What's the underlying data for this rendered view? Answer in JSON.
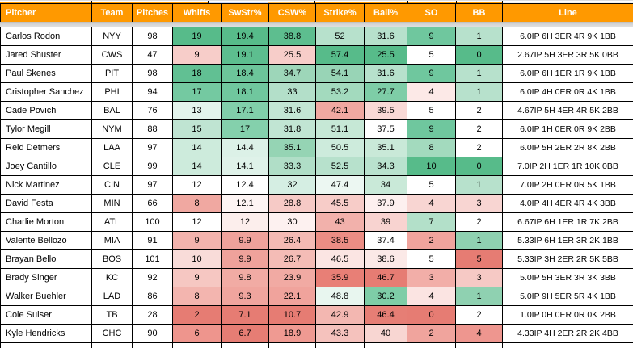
{
  "colors": {
    "header_bg": "#ff9900",
    "header_text": "#ffffff",
    "grid_border": "#000000",
    "heat_green_max": "#57bb8a",
    "heat_red_max": "#e67c73",
    "frozen_band_gray": "#d2d2d2",
    "top_strip_blue": "#c9daf8"
  },
  "table": {
    "columns": [
      {
        "key": "pitcher",
        "label": "Pitcher"
      },
      {
        "key": "team",
        "label": "Team"
      },
      {
        "key": "pitches",
        "label": "Pitches"
      },
      {
        "key": "whiffs",
        "label": "Whiffs"
      },
      {
        "key": "swstr",
        "label": "SwStr%"
      },
      {
        "key": "csw",
        "label": "CSW%"
      },
      {
        "key": "strike",
        "label": "Strike%"
      },
      {
        "key": "ball",
        "label": "Ball%"
      },
      {
        "key": "so",
        "label": "SO"
      },
      {
        "key": "bb",
        "label": "BB"
      },
      {
        "key": "line",
        "label": "Line"
      }
    ],
    "rows": [
      {
        "cells": [
          {
            "v": "Carlos Rodon"
          },
          {
            "v": "NYY"
          },
          {
            "v": "98"
          },
          {
            "v": "19",
            "bg": "#57bb8a"
          },
          {
            "v": "19.4",
            "bg": "#57bb8a"
          },
          {
            "v": "38.8",
            "bg": "#5dbe8f"
          },
          {
            "v": "52",
            "bg": "#b7e1cc"
          },
          {
            "v": "31.6",
            "bg": "#b7e1cc"
          },
          {
            "v": "9",
            "bg": "#6fc79e"
          },
          {
            "v": "1",
            "bg": "#b7e1cc"
          },
          {
            "v": "6.0IP 6H 3ER 4R 9K 1BB"
          }
        ]
      },
      {
        "cells": [
          {
            "v": "Jared Shuster"
          },
          {
            "v": "CWS"
          },
          {
            "v": "47"
          },
          {
            "v": "9",
            "bg": "#f7cdc9"
          },
          {
            "v": "19.1",
            "bg": "#5dbe8f"
          },
          {
            "v": "25.5",
            "bg": "#f7cdc9"
          },
          {
            "v": "57.4",
            "bg": "#57bb8a"
          },
          {
            "v": "25.5",
            "bg": "#57bb8a"
          },
          {
            "v": "5"
          },
          {
            "v": "0",
            "bg": "#57bb8a"
          },
          {
            "v": "2.67IP 5H 3ER 3R 5K 0BB"
          }
        ]
      },
      {
        "cells": [
          {
            "v": "Paul Skenes"
          },
          {
            "v": "PIT"
          },
          {
            "v": "98"
          },
          {
            "v": "18",
            "bg": "#61c093"
          },
          {
            "v": "18.4",
            "bg": "#6cc59a"
          },
          {
            "v": "34.7",
            "bg": "#9dd6b9"
          },
          {
            "v": "54.1",
            "bg": "#98d4b6"
          },
          {
            "v": "31.6",
            "bg": "#b7e1cc"
          },
          {
            "v": "9",
            "bg": "#6fc79e"
          },
          {
            "v": "1",
            "bg": "#b7e1cc"
          },
          {
            "v": "6.0IP 6H 1ER 1R 9K 1BB"
          }
        ]
      },
      {
        "cells": [
          {
            "v": "Cristopher Sanchez"
          },
          {
            "v": "PHI"
          },
          {
            "v": "94"
          },
          {
            "v": "17",
            "bg": "#74c9a1"
          },
          {
            "v": "18.1",
            "bg": "#70c79e"
          },
          {
            "v": "33",
            "bg": "#b3dfc9"
          },
          {
            "v": "53.2",
            "bg": "#a3dabe"
          },
          {
            "v": "27.7",
            "bg": "#7ecda7"
          },
          {
            "v": "4",
            "bg": "#fce9e7"
          },
          {
            "v": "1",
            "bg": "#b7e1cc"
          },
          {
            "v": "6.0IP 4H 0ER 0R 4K 1BB"
          }
        ]
      },
      {
        "cells": [
          {
            "v": "Cade Povich"
          },
          {
            "v": "BAL"
          },
          {
            "v": "76"
          },
          {
            "v": "13",
            "bg": "#e3f4ec"
          },
          {
            "v": "17.1",
            "bg": "#81cfaa"
          },
          {
            "v": "31.6",
            "bg": "#c3e6d4"
          },
          {
            "v": "42.1",
            "bg": "#f0a8a1"
          },
          {
            "v": "39.5",
            "bg": "#f9d9d6"
          },
          {
            "v": "5"
          },
          {
            "v": "2"
          },
          {
            "v": "4.67IP 5H 4ER 4R 5K 2BB"
          }
        ]
      },
      {
        "cells": [
          {
            "v": "Tylor Megill"
          },
          {
            "v": "NYM"
          },
          {
            "v": "88"
          },
          {
            "v": "15",
            "bg": "#bfe4d2"
          },
          {
            "v": "17",
            "bg": "#84d0ac"
          },
          {
            "v": "31.8",
            "bg": "#c1e5d3"
          },
          {
            "v": "51.1",
            "bg": "#c6e8d6"
          },
          {
            "v": "37.5"
          },
          {
            "v": "9",
            "bg": "#6fc79e"
          },
          {
            "v": "2"
          },
          {
            "v": "6.0IP 1H 0ER 0R 9K 2BB"
          }
        ]
      },
      {
        "cells": [
          {
            "v": "Reid Detmers"
          },
          {
            "v": "LAA"
          },
          {
            "v": "97"
          },
          {
            "v": "14",
            "bg": "#cdebdc"
          },
          {
            "v": "14.4",
            "bg": "#dcf1e7"
          },
          {
            "v": "35.1",
            "bg": "#95d4b4"
          },
          {
            "v": "50.5",
            "bg": "#cdebdc"
          },
          {
            "v": "35.1",
            "bg": "#c9e9d8"
          },
          {
            "v": "8",
            "bg": "#a3dabe"
          },
          {
            "v": "2"
          },
          {
            "v": "6.0IP 5H 2ER 2R 8K 2BB"
          }
        ]
      },
      {
        "cells": [
          {
            "v": "Joey Cantillo"
          },
          {
            "v": "CLE"
          },
          {
            "v": "99"
          },
          {
            "v": "14",
            "bg": "#cdebdc"
          },
          {
            "v": "14.1",
            "bg": "#dff2e9"
          },
          {
            "v": "33.3",
            "bg": "#b0dec7"
          },
          {
            "v": "52.5",
            "bg": "#b7e1cc"
          },
          {
            "v": "34.3",
            "bg": "#b9e2ce"
          },
          {
            "v": "10",
            "bg": "#57bb8a"
          },
          {
            "v": "0",
            "bg": "#57bb8a"
          },
          {
            "v": "7.0IP 2H 1ER 1R 10K 0BB"
          }
        ]
      },
      {
        "cells": [
          {
            "v": "Nick Martinez"
          },
          {
            "v": "CIN"
          },
          {
            "v": "97"
          },
          {
            "v": "12"
          },
          {
            "v": "12.4"
          },
          {
            "v": "32",
            "bg": "#d5eee3"
          },
          {
            "v": "47.4",
            "bg": "#ecf7f2"
          },
          {
            "v": "34",
            "bg": "#c9e9d8"
          },
          {
            "v": "5"
          },
          {
            "v": "1",
            "bg": "#b7e1cc"
          },
          {
            "v": "7.0IP 2H 0ER 0R 5K 1BB"
          }
        ]
      },
      {
        "cells": [
          {
            "v": "David Festa"
          },
          {
            "v": "MIN"
          },
          {
            "v": "66"
          },
          {
            "v": "8",
            "bg": "#f0a8a1"
          },
          {
            "v": "12.1",
            "bg": "#fdf4f3"
          },
          {
            "v": "28.8",
            "bg": "#f6cac6"
          },
          {
            "v": "45.5",
            "bg": "#f7ccc8"
          },
          {
            "v": "37.9",
            "bg": "#fdf0ef"
          },
          {
            "v": "4",
            "bg": "#f8d5d2"
          },
          {
            "v": "3",
            "bg": "#f8d5d2"
          },
          {
            "v": "4.0IP 4H 4ER 4R 4K 3BB"
          }
        ]
      },
      {
        "cells": [
          {
            "v": "Charlie Morton"
          },
          {
            "v": "ATL"
          },
          {
            "v": "100"
          },
          {
            "v": "12"
          },
          {
            "v": "12",
            "bg": "#fceeec"
          },
          {
            "v": "30",
            "bg": "#fdf1f0"
          },
          {
            "v": "43",
            "bg": "#f2b1ab"
          },
          {
            "v": "39",
            "bg": "#f8d3d0"
          },
          {
            "v": "7",
            "bg": "#b3e0c9"
          },
          {
            "v": "2"
          },
          {
            "v": "6.67IP 6H 1ER 1R 7K 2BB"
          }
        ]
      },
      {
        "cells": [
          {
            "v": "Valente Bellozo"
          },
          {
            "v": "MIA"
          },
          {
            "v": "91"
          },
          {
            "v": "9",
            "bg": "#f3b3ad"
          },
          {
            "v": "9.9",
            "bg": "#efa29b"
          },
          {
            "v": "26.4",
            "bg": "#f4bab4"
          },
          {
            "v": "38.5",
            "bg": "#eb8d84"
          },
          {
            "v": "37.4"
          },
          {
            "v": "2",
            "bg": "#f0a49d"
          },
          {
            "v": "1",
            "bg": "#8fd1b1"
          },
          {
            "v": "5.33IP 6H 1ER 3R 2K 1BB"
          }
        ]
      },
      {
        "cells": [
          {
            "v": "Brayan Bello"
          },
          {
            "v": "BOS"
          },
          {
            "v": "101"
          },
          {
            "v": "10",
            "bg": "#f9dcd9"
          },
          {
            "v": "9.9",
            "bg": "#efa29b"
          },
          {
            "v": "26.7",
            "bg": "#f4bcb6"
          },
          {
            "v": "46.5",
            "bg": "#fbe5e3"
          },
          {
            "v": "38.6",
            "bg": "#fbe9e7"
          },
          {
            "v": "5"
          },
          {
            "v": "5",
            "bg": "#e67c73"
          },
          {
            "v": "5.33IP 3H 2ER 2R 5K 5BB"
          }
        ]
      },
      {
        "cells": [
          {
            "v": "Brady Singer"
          },
          {
            "v": "KC"
          },
          {
            "v": "92"
          },
          {
            "v": "9",
            "bg": "#f6c7c2"
          },
          {
            "v": "9.8",
            "bg": "#f1aba4"
          },
          {
            "v": "23.9",
            "bg": "#f1aaa3"
          },
          {
            "v": "35.9",
            "bg": "#e87f76"
          },
          {
            "v": "46.7",
            "bg": "#e67c73"
          },
          {
            "v": "3",
            "bg": "#f2aea8"
          },
          {
            "v": "3",
            "bg": "#f6c9c5"
          },
          {
            "v": "5.0IP 5H 3ER 3R 3K 3BB"
          }
        ]
      },
      {
        "cells": [
          {
            "v": "Walker Buehler"
          },
          {
            "v": "LAD"
          },
          {
            "v": "86"
          },
          {
            "v": "8",
            "bg": "#f3b5af"
          },
          {
            "v": "9.3",
            "bg": "#f0a59e"
          },
          {
            "v": "22.1",
            "bg": "#f0a39c"
          },
          {
            "v": "48.8",
            "bg": "#e8f6ef"
          },
          {
            "v": "30.2",
            "bg": "#7ecda7"
          },
          {
            "v": "4",
            "bg": "#fbe4e2"
          },
          {
            "v": "1",
            "bg": "#8fd1b1"
          },
          {
            "v": "5.0IP 9H 5ER 5R 4K 1BB"
          }
        ]
      },
      {
        "cells": [
          {
            "v": "Cole Sulser"
          },
          {
            "v": "TB"
          },
          {
            "v": "28"
          },
          {
            "v": "2",
            "bg": "#e67c73"
          },
          {
            "v": "7.1",
            "bg": "#e67c73"
          },
          {
            "v": "10.7",
            "bg": "#e67c73"
          },
          {
            "v": "42.9",
            "bg": "#f3b7b1"
          },
          {
            "v": "46.4",
            "bg": "#e67e75"
          },
          {
            "v": "0",
            "bg": "#e67c73"
          },
          {
            "v": "2"
          },
          {
            "v": "1.0IP 0H 0ER 0R 0K 2BB"
          }
        ]
      },
      {
        "cells": [
          {
            "v": "Kyle Hendricks"
          },
          {
            "v": "CHC"
          },
          {
            "v": "90"
          },
          {
            "v": "6",
            "bg": "#ee958d"
          },
          {
            "v": "6.7",
            "bg": "#e67d74"
          },
          {
            "v": "18.9",
            "bg": "#ef9a92"
          },
          {
            "v": "43.3",
            "bg": "#f5c2bd"
          },
          {
            "v": "40",
            "bg": "#f8d6d2"
          },
          {
            "v": "2",
            "bg": "#f0a49d"
          },
          {
            "v": "4",
            "bg": "#ee968f"
          },
          {
            "v": "4.33IP 4H 2ER 2R 2K 4BB"
          }
        ]
      }
    ]
  }
}
